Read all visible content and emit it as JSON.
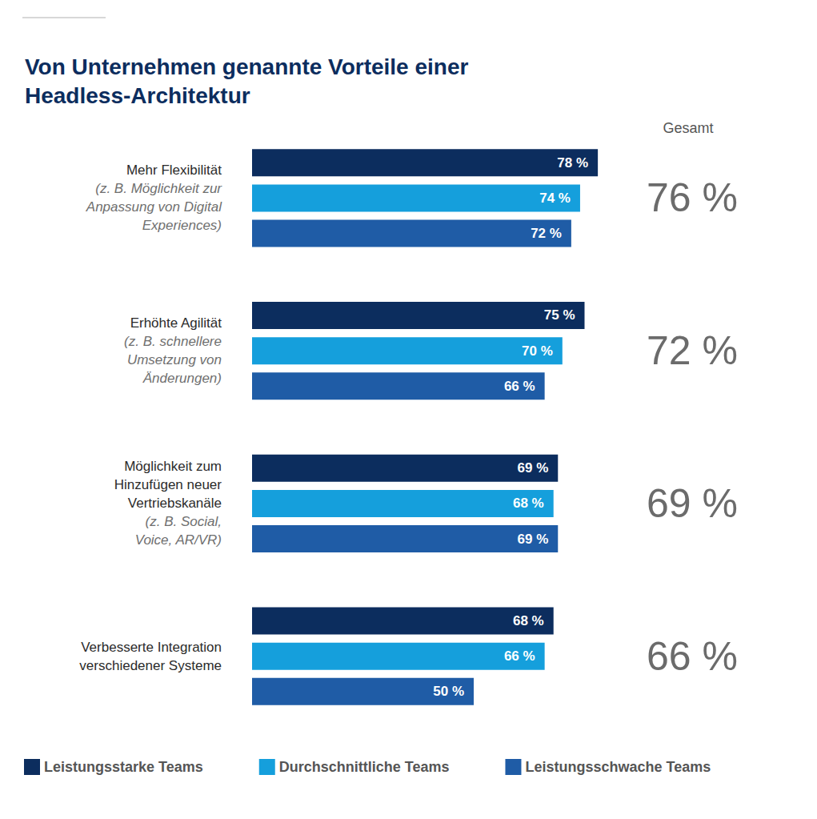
{
  "chart_data": {
    "type": "bar",
    "title": "Von Unternehmen genannte Vorteile einer\nHeadless-Architektur",
    "orientation": "horizontal",
    "categories": [
      "Mehr Flexibilität",
      "Erhöhte Agilität",
      "Möglichkeit zum\nHinzufügen neuer\nVertriebskanäle",
      "Verbesserte Integration\nverschiedener Systeme"
    ],
    "category_notes": [
      "(z. B. Möglichkeit zur\nAnpassung von Digital\nExperiences)",
      "(z. B. schnellere\nUmsetzung von\nÄnderungen)",
      "(z. B. Social,\nVoice, AR/VR)",
      null
    ],
    "series": [
      {
        "name": "Leistungsstarke Teams",
        "color": "#0c2d5e",
        "values": [
          78,
          75,
          69,
          68
        ],
        "value_labels": [
          "78 %",
          "75 %",
          "69 %",
          "68 %"
        ]
      },
      {
        "name": "Durchschnittliche Teams",
        "color": "#159fdc",
        "values": [
          74,
          70,
          68,
          66
        ],
        "value_labels": [
          "74 %",
          "70 %",
          "68 %",
          "66 %"
        ]
      },
      {
        "name": "Leistungsschwache Teams",
        "color": "#1f5ca6",
        "values": [
          72,
          66,
          69,
          50
        ],
        "value_labels": [
          "72 %",
          "66 %",
          "69 %",
          "50 %"
        ]
      }
    ],
    "totals_title": "Gesamt",
    "totals": [
      76,
      72,
      69,
      66
    ],
    "total_labels": [
      "76 %",
      "72 %",
      "69 %",
      "66 %"
    ],
    "xlim": [
      0,
      100
    ],
    "tick_labels": false,
    "grid": false,
    "data_labels": true,
    "legend": "bottom"
  }
}
